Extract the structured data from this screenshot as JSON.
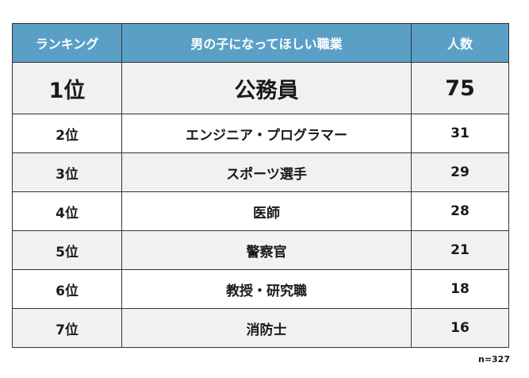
{
  "table": {
    "headers": [
      "ランキング",
      "男の子になってほしい職業",
      "人数"
    ],
    "rows": [
      {
        "rank": "1位",
        "job": "公務員",
        "count": "75"
      },
      {
        "rank": "2位",
        "job": "エンジニア・プログラマー",
        "count": "31"
      },
      {
        "rank": "3位",
        "job": "スポーツ選手",
        "count": "29"
      },
      {
        "rank": "4位",
        "job": "医師",
        "count": "28"
      },
      {
        "rank": "5位",
        "job": "警察官",
        "count": "21"
      },
      {
        "rank": "6位",
        "job": "教授・研究職",
        "count": "18"
      },
      {
        "rank": "7位",
        "job": "消防士",
        "count": "16"
      }
    ]
  },
  "note": "n=327",
  "colors": {
    "header_bg": "#5aa0c6",
    "header_text": "#ffffff",
    "row_shade": "#f1f1f1",
    "border": "#333333"
  }
}
